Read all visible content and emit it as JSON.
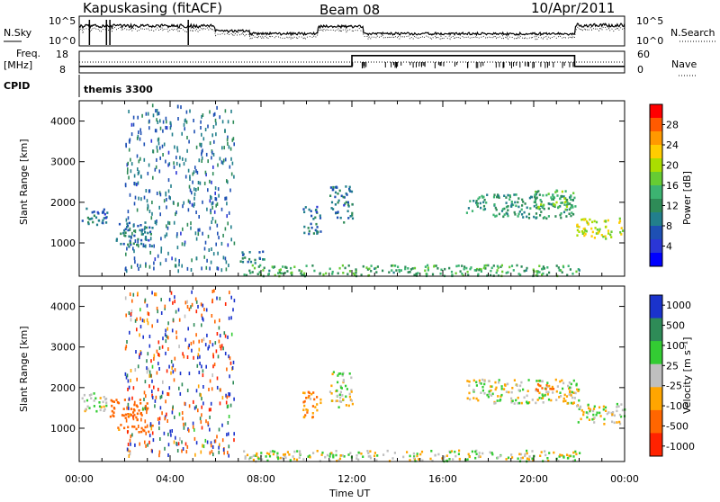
{
  "header": {
    "site": "Kapuskasing (fitACF)",
    "beam": "Beam 08",
    "date": "10/Apr/2011"
  },
  "top_labels": {
    "nsky": "N.Sky",
    "nsky_ticks": [
      "10^5",
      "10^0"
    ],
    "nsearch": "N.Search",
    "nsearch_ticks": [
      "10^5",
      "10^0"
    ],
    "freq": "Freq.",
    "freq_unit": "[MHz]",
    "freq_ticks": [
      "18",
      "8"
    ],
    "nave": "Nave",
    "nave_ticks": [
      "60",
      "0"
    ],
    "cpid": "CPID",
    "cpid_value": "themis 3300"
  },
  "x_axis": {
    "label": "Time UT",
    "ticks": [
      "00:00",
      "04:00",
      "08:00",
      "12:00",
      "16:00",
      "20:00",
      "00:00"
    ]
  },
  "power_colorbar": {
    "label": "Power [dB]",
    "ticks": [
      "28",
      "24",
      "20",
      "16",
      "12",
      "8",
      "4"
    ],
    "colors": [
      "#ff0000",
      "#ff5a00",
      "#ff9900",
      "#ffcc00",
      "#aadd00",
      "#66cc33",
      "#3cb371",
      "#2e8b57",
      "#227f8c",
      "#1e50b4",
      "#2a36d6",
      "#0000ff"
    ]
  },
  "velocity_colorbar": {
    "label": "Velocity [m s⁻¹]",
    "ticks": [
      "1000",
      "500",
      "100",
      "25",
      "-25",
      "-100",
      "-500",
      "-1000"
    ],
    "colors": [
      "#1a33cc",
      "#2e8b57",
      "#33cc33",
      "#bfbfbf",
      "#ffa500",
      "#ff6600",
      "#ff2200"
    ]
  },
  "y_axis": {
    "label": "Slant Range [km]",
    "ticks": [
      "4000",
      "3000",
      "2000",
      "1000"
    ]
  },
  "chart_data": [
    {
      "type": "heatmap",
      "title": "Power",
      "xlabel": "Time UT",
      "ylabel": "Slant Range [km]",
      "xlim": [
        0,
        24
      ],
      "ylim": [
        180,
        4500
      ],
      "colorbar": "Power [dB]",
      "colorbar_range": [
        0,
        32
      ],
      "regions": [
        {
          "t0": 0.1,
          "t1": 1.2,
          "r0": 1400,
          "r1": 1900,
          "power": 8
        },
        {
          "t0": 1.6,
          "t1": 3.2,
          "r0": 900,
          "r1": 1500,
          "power": 8
        },
        {
          "t0": 2.0,
          "t1": 6.8,
          "r0": 300,
          "r1": 4400,
          "power": 8
        },
        {
          "t0": 7.0,
          "t1": 8.2,
          "r0": 500,
          "r1": 800,
          "power": 10
        },
        {
          "t0": 7.2,
          "t1": 22.0,
          "r0": 180,
          "r1": 450,
          "power": 14
        },
        {
          "t0": 9.8,
          "t1": 10.6,
          "r0": 1200,
          "r1": 1900,
          "power": 8
        },
        {
          "t0": 11.0,
          "t1": 12.0,
          "r0": 1500,
          "r1": 2400,
          "power": 8
        },
        {
          "t0": 17.0,
          "t1": 21.8,
          "r0": 1600,
          "r1": 2200,
          "power": 12
        },
        {
          "t0": 20.0,
          "t1": 21.8,
          "r0": 1800,
          "r1": 2300,
          "power": 16
        },
        {
          "t0": 21.8,
          "t1": 24.0,
          "r0": 1100,
          "r1": 1600,
          "power": 20
        }
      ]
    },
    {
      "type": "heatmap",
      "title": "Velocity",
      "xlabel": "Time UT",
      "ylabel": "Slant Range [km]",
      "xlim": [
        0,
        24
      ],
      "ylim": [
        180,
        4500
      ],
      "colorbar": "Velocity [m s^-1]",
      "colorbar_range": [
        -1000,
        1000
      ],
      "regions": [
        {
          "t0": 0.1,
          "t1": 1.2,
          "r0": 1400,
          "r1": 1900,
          "velocity": 0
        },
        {
          "t0": 1.2,
          "t1": 3.0,
          "r0": 1200,
          "r1": 1700,
          "velocity": -250
        },
        {
          "t0": 1.6,
          "t1": 3.2,
          "r0": 900,
          "r1": 1100,
          "velocity": -150
        },
        {
          "t0": 2.0,
          "t1": 6.8,
          "r0": 300,
          "r1": 4400,
          "velocity": 0
        },
        {
          "t0": 7.2,
          "t1": 22.0,
          "r0": 180,
          "r1": 450,
          "velocity": 0
        },
        {
          "t0": 9.8,
          "t1": 10.6,
          "r0": 1200,
          "r1": 1900,
          "velocity": -80
        },
        {
          "t0": 11.0,
          "t1": 12.0,
          "r0": 1500,
          "r1": 2400,
          "velocity": 0
        },
        {
          "t0": 17.0,
          "t1": 22.0,
          "r0": 1600,
          "r1": 2200,
          "velocity": 0
        },
        {
          "t0": 20.0,
          "t1": 21.0,
          "r0": 1900,
          "r1": 2100,
          "velocity": -200
        },
        {
          "t0": 21.8,
          "t1": 24.0,
          "r0": 1100,
          "r1": 1600,
          "velocity": 0
        }
      ]
    },
    {
      "type": "line",
      "title": "Freq. [MHz]",
      "ylim": [
        8,
        18
      ],
      "x": [
        0,
        12,
        12,
        21.8,
        21.8,
        24
      ],
      "y": [
        11,
        11,
        16,
        16,
        11,
        11
      ]
    }
  ]
}
